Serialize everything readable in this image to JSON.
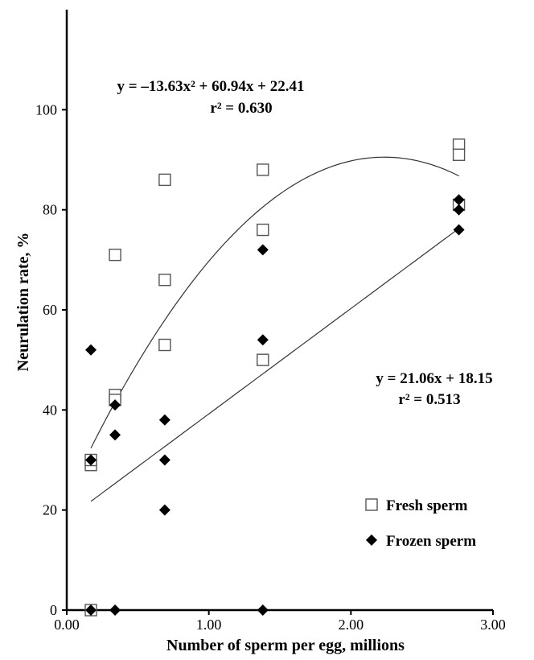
{
  "chart_data": {
    "type": "scatter",
    "title": "",
    "xlabel": "Number of sperm per egg,  millions",
    "ylabel": "Neurulation rate, %",
    "xlim": [
      0,
      3
    ],
    "ylim": [
      0,
      120
    ],
    "x_ticks": [
      "0.00",
      "1.00",
      "2.00",
      "3.00"
    ],
    "y_ticks": [
      "0",
      "20",
      "40",
      "60",
      "80",
      "100"
    ],
    "grid": false,
    "legend_position": "lower-right",
    "series": [
      {
        "name": "Fresh sperm",
        "marker": "open-square",
        "color": "#555555",
        "points": [
          {
            "x": 0.17,
            "y": 0
          },
          {
            "x": 0.17,
            "y": 29
          },
          {
            "x": 0.17,
            "y": 30
          },
          {
            "x": 0.34,
            "y": 71
          },
          {
            "x": 0.34,
            "y": 43
          },
          {
            "x": 0.34,
            "y": 42
          },
          {
            "x": 0.69,
            "y": 86
          },
          {
            "x": 0.69,
            "y": 66
          },
          {
            "x": 0.69,
            "y": 53
          },
          {
            "x": 1.38,
            "y": 88
          },
          {
            "x": 1.38,
            "y": 76
          },
          {
            "x": 1.38,
            "y": 50
          },
          {
            "x": 2.76,
            "y": 93
          },
          {
            "x": 2.76,
            "y": 91
          },
          {
            "x": 2.76,
            "y": 81
          }
        ],
        "fit": {
          "kind": "quadratic",
          "coefficients": [
            -13.63,
            60.94,
            22.41
          ],
          "x_range": [
            0.17,
            2.76
          ],
          "equation": "y = –13.63x² + 60.94x + 22.41",
          "r2": "r² = 0.630"
        }
      },
      {
        "name": "Frozen sperm",
        "marker": "filled-diamond",
        "color": "#000000",
        "points": [
          {
            "x": 0.17,
            "y": 52
          },
          {
            "x": 0.17,
            "y": 30
          },
          {
            "x": 0.17,
            "y": 0
          },
          {
            "x": 0.34,
            "y": 41
          },
          {
            "x": 0.34,
            "y": 35
          },
          {
            "x": 0.34,
            "y": 0
          },
          {
            "x": 0.69,
            "y": 38
          },
          {
            "x": 0.69,
            "y": 30
          },
          {
            "x": 0.69,
            "y": 20
          },
          {
            "x": 1.38,
            "y": 72
          },
          {
            "x": 1.38,
            "y": 54
          },
          {
            "x": 1.38,
            "y": 0
          },
          {
            "x": 2.76,
            "y": 82
          },
          {
            "x": 2.76,
            "y": 80
          },
          {
            "x": 2.76,
            "y": 76
          }
        ],
        "fit": {
          "kind": "linear",
          "coefficients": [
            21.06,
            18.15
          ],
          "x_range": [
            0.17,
            2.76
          ],
          "equation": "y = 21.06x + 18.15",
          "r2": "r² = 0.513"
        }
      }
    ]
  }
}
